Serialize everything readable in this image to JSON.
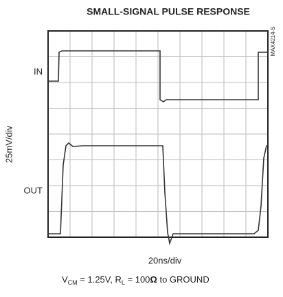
{
  "title": "SMALL-SIGNAL PULSE RESPONSE",
  "side_code": "MAX4214-S",
  "y_label": "25mV/div",
  "x_label": "20ns/div",
  "trace_labels": [
    "IN",
    "OUT"
  ],
  "footnote": {
    "parts": [
      "V",
      "CM",
      " = 1.25V, R",
      "L",
      " = 100",
      "Ω",
      " to GROUND"
    ]
  }
}
